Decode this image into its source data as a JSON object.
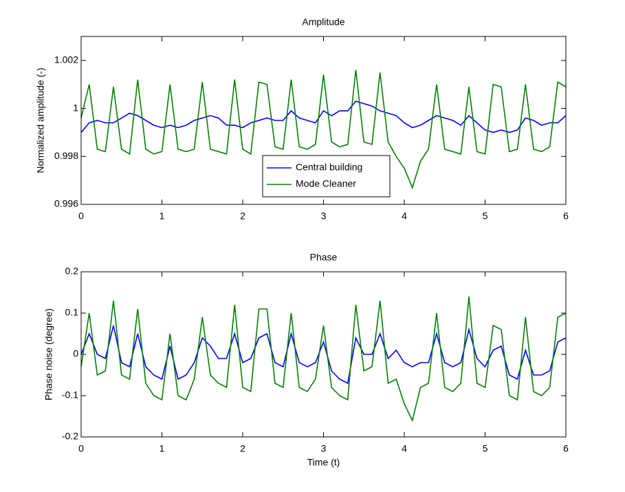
{
  "chart_data": [
    {
      "type": "line",
      "title": "Amplitude",
      "ylabel": "Normalized amplitude (-)",
      "x": [
        0,
        0.1,
        0.2,
        0.3,
        0.4,
        0.5,
        0.6,
        0.7,
        0.8,
        0.9,
        1,
        1.1,
        1.2,
        1.3,
        1.4,
        1.5,
        1.6,
        1.7,
        1.8,
        1.9,
        2,
        2.1,
        2.2,
        2.3,
        2.4,
        2.5,
        2.6,
        2.7,
        2.8,
        2.9,
        3,
        3.1,
        3.2,
        3.3,
        3.4,
        3.5,
        3.6,
        3.7,
        3.8,
        3.9,
        4,
        4.1,
        4.2,
        4.3,
        4.4,
        4.5,
        4.6,
        4.7,
        4.8,
        4.9,
        5,
        5.1,
        5.2,
        5.3,
        5.4,
        5.5,
        5.6,
        5.7,
        5.8,
        5.9,
        6
      ],
      "series": [
        {
          "name": "Central building",
          "color": "#0000ff",
          "values": [
            0.999,
            0.9994,
            0.9995,
            0.9994,
            0.9994,
            0.9996,
            0.9998,
            0.9997,
            0.9995,
            0.9993,
            0.9992,
            0.9993,
            0.9992,
            0.9993,
            0.9995,
            0.9996,
            0.9997,
            0.9996,
            0.9993,
            0.9993,
            0.9992,
            0.9994,
            0.9995,
            0.9996,
            0.9995,
            0.9995,
            0.9999,
            0.9996,
            0.9995,
            0.9994,
            0.9999,
            0.9997,
            0.9999,
            0.9999,
            1.0003,
            1.0002,
            1.0001,
            0.9999,
            0.9998,
            0.9997,
            0.9994,
            0.9992,
            0.9993,
            0.9995,
            0.9997,
            0.9996,
            0.9995,
            0.9993,
            0.9997,
            0.9994,
            0.9991,
            0.999,
            0.9991,
            0.999,
            0.9991,
            0.9996,
            0.9995,
            0.9993,
            0.9994,
            0.9994,
            0.9997
          ]
        },
        {
          "name": "Mode Cleaner",
          "color": "#008000",
          "values": [
            0.9996,
            1.001,
            0.9983,
            0.9982,
            1.0009,
            0.9983,
            0.9981,
            1.0012,
            0.9983,
            0.9981,
            0.9982,
            1.001,
            0.9983,
            0.9982,
            0.9983,
            1.0011,
            0.9983,
            0.9982,
            0.9981,
            1.0012,
            0.9983,
            0.9981,
            1.0011,
            1.001,
            0.9984,
            0.9983,
            1.0012,
            0.9984,
            0.9983,
            0.9985,
            1.0014,
            0.9986,
            0.9984,
            0.9985,
            1.0016,
            0.9986,
            0.9985,
            1.0015,
            0.9986,
            0.998,
            0.9975,
            0.9967,
            0.9978,
            0.9983,
            1.001,
            0.9983,
            0.9982,
            0.9981,
            1.0009,
            0.9982,
            0.9981,
            1.001,
            1.0009,
            0.9982,
            0.9983,
            1.001,
            0.9983,
            0.9982,
            0.9984,
            1.0011,
            1.0009
          ]
        }
      ],
      "xlim": [
        0,
        6
      ],
      "xticks": [
        0,
        1,
        2,
        3,
        4,
        5,
        6
      ],
      "ylim": [
        0.996,
        1.003
      ],
      "yticks": [
        0.996,
        0.998,
        1,
        1.002
      ],
      "legend": "lower center"
    },
    {
      "type": "line",
      "title": "Phase",
      "xlabel": "Time (t)",
      "ylabel": "Phase noise (degree)",
      "x": [
        0,
        0.1,
        0.2,
        0.3,
        0.4,
        0.5,
        0.6,
        0.7,
        0.8,
        0.9,
        1,
        1.1,
        1.2,
        1.3,
        1.4,
        1.5,
        1.6,
        1.7,
        1.8,
        1.9,
        2,
        2.1,
        2.2,
        2.3,
        2.4,
        2.5,
        2.6,
        2.7,
        2.8,
        2.9,
        3,
        3.1,
        3.2,
        3.3,
        3.4,
        3.5,
        3.6,
        3.7,
        3.8,
        3.9,
        4,
        4.1,
        4.2,
        4.3,
        4.4,
        4.5,
        4.6,
        4.7,
        4.8,
        4.9,
        5,
        5.1,
        5.2,
        5.3,
        5.4,
        5.5,
        5.6,
        5.7,
        5.8,
        5.9,
        6
      ],
      "series": [
        {
          "color": "#0000ff",
          "values": [
            0.0,
            0.05,
            0.0,
            -0.01,
            0.07,
            -0.02,
            -0.03,
            0.05,
            -0.03,
            -0.05,
            -0.06,
            0.02,
            -0.06,
            -0.05,
            -0.02,
            0.04,
            0.02,
            -0.01,
            -0.01,
            0.05,
            -0.02,
            -0.01,
            0.04,
            0.05,
            -0.02,
            -0.03,
            0.05,
            -0.02,
            -0.03,
            -0.02,
            0.03,
            -0.04,
            -0.06,
            -0.07,
            0.04,
            0.0,
            0.0,
            0.05,
            -0.01,
            0.01,
            -0.02,
            -0.03,
            -0.02,
            -0.02,
            0.05,
            -0.02,
            -0.03,
            -0.02,
            0.06,
            -0.01,
            -0.03,
            0.01,
            0.02,
            -0.05,
            -0.06,
            0.01,
            -0.05,
            -0.05,
            -0.04,
            0.03,
            0.04
          ]
        },
        {
          "color": "#008000",
          "values": [
            -0.03,
            0.1,
            -0.05,
            -0.04,
            0.13,
            -0.05,
            -0.06,
            0.11,
            -0.07,
            -0.1,
            -0.11,
            0.05,
            -0.1,
            -0.11,
            -0.06,
            0.09,
            -0.05,
            -0.07,
            -0.08,
            0.12,
            -0.08,
            -0.09,
            0.11,
            0.11,
            -0.07,
            -0.08,
            0.1,
            -0.08,
            -0.09,
            -0.06,
            0.07,
            -0.08,
            -0.1,
            -0.11,
            0.12,
            -0.04,
            -0.03,
            0.13,
            -0.07,
            -0.06,
            -0.12,
            -0.16,
            -0.08,
            -0.07,
            0.1,
            -0.08,
            -0.09,
            -0.07,
            0.14,
            -0.07,
            -0.08,
            0.07,
            0.06,
            -0.1,
            -0.11,
            0.09,
            -0.09,
            -0.1,
            -0.08,
            0.09,
            0.1
          ]
        }
      ],
      "xlim": [
        0,
        6
      ],
      "xticks": [
        0,
        1,
        2,
        3,
        4,
        5,
        6
      ],
      "ylim": [
        -0.2,
        0.2
      ],
      "yticks": [
        -0.2,
        -0.1,
        0,
        0.1,
        0.2
      ]
    }
  ]
}
